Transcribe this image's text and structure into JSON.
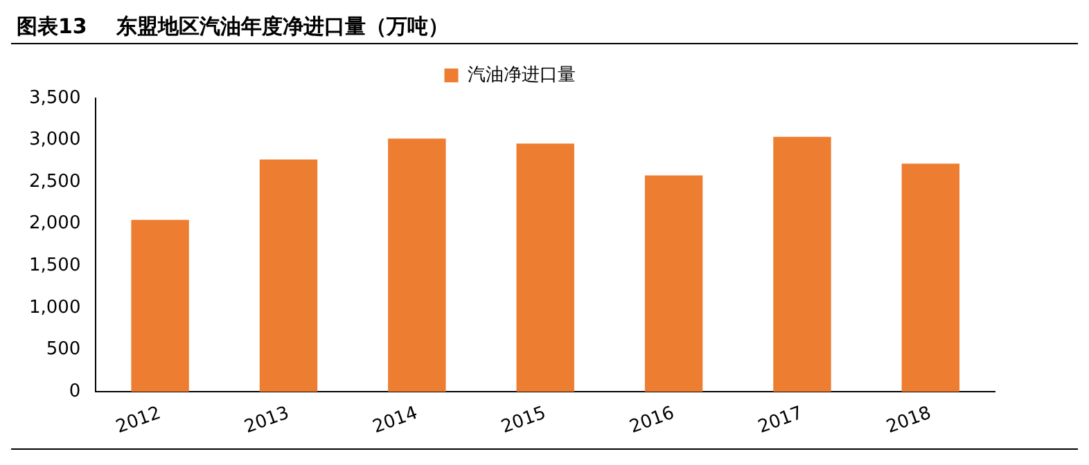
{
  "chart_data": {
    "type": "bar",
    "title": "图表13    东盟地区汽油年度净进口量（万吨）",
    "categories": [
      "2012",
      "2013",
      "2014",
      "2015",
      "2016",
      "2017",
      "2018"
    ],
    "series": [
      {
        "name": "汽油净进口量",
        "color": "#ed7d31",
        "values": [
          2050,
          2770,
          3020,
          2960,
          2580,
          3040,
          2720
        ]
      }
    ],
    "ylim": [
      0,
      3500
    ],
    "yticks": [
      {
        "value": 0,
        "label": "0"
      },
      {
        "value": 500,
        "label": "500"
      },
      {
        "value": 1000,
        "label": "1,000"
      },
      {
        "value": 1500,
        "label": "1,500"
      },
      {
        "value": 2000,
        "label": "2,000"
      },
      {
        "value": 2500,
        "label": "2,500"
      },
      {
        "value": 3000,
        "label": "3,000"
      },
      {
        "value": 3500,
        "label": "3,500"
      }
    ],
    "grid": false,
    "legend": "top"
  }
}
